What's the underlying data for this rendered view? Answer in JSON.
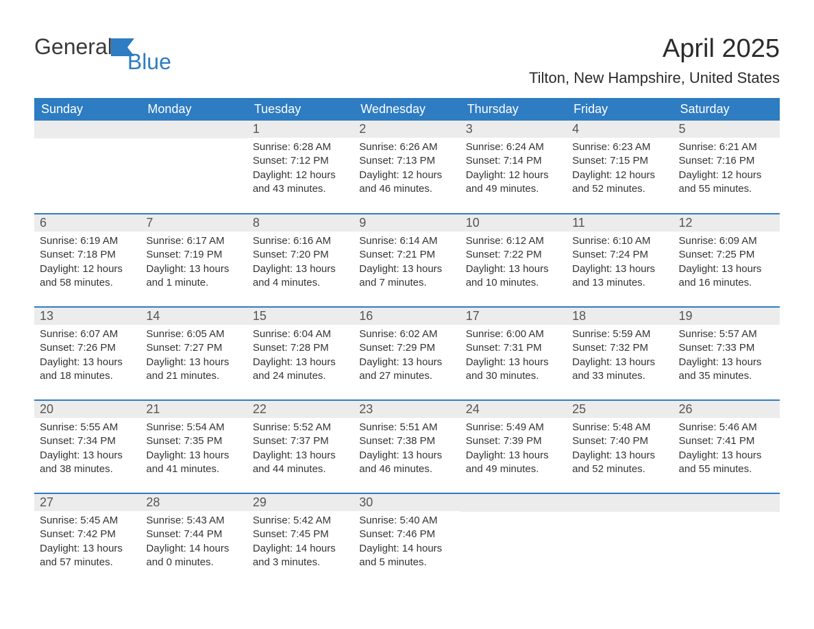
{
  "brand": {
    "part1": "General",
    "part2": "Blue",
    "accent_color": "#2e7cc2"
  },
  "title": "April 2025",
  "location": "Tilton, New Hampshire, United States",
  "colors": {
    "header_bg": "#2e7cc2",
    "header_text": "#ffffff",
    "daynum_bg": "#ececec",
    "daynum_text": "#555555",
    "body_text": "#333333",
    "row_border": "#2e7cc2",
    "page_bg": "#ffffff"
  },
  "days_of_week": [
    "Sunday",
    "Monday",
    "Tuesday",
    "Wednesday",
    "Thursday",
    "Friday",
    "Saturday"
  ],
  "weeks": [
    [
      null,
      null,
      {
        "n": "1",
        "sunrise": "6:28 AM",
        "sunset": "7:12 PM",
        "daylight": "12 hours and 43 minutes."
      },
      {
        "n": "2",
        "sunrise": "6:26 AM",
        "sunset": "7:13 PM",
        "daylight": "12 hours and 46 minutes."
      },
      {
        "n": "3",
        "sunrise": "6:24 AM",
        "sunset": "7:14 PM",
        "daylight": "12 hours and 49 minutes."
      },
      {
        "n": "4",
        "sunrise": "6:23 AM",
        "sunset": "7:15 PM",
        "daylight": "12 hours and 52 minutes."
      },
      {
        "n": "5",
        "sunrise": "6:21 AM",
        "sunset": "7:16 PM",
        "daylight": "12 hours and 55 minutes."
      }
    ],
    [
      {
        "n": "6",
        "sunrise": "6:19 AM",
        "sunset": "7:18 PM",
        "daylight": "12 hours and 58 minutes."
      },
      {
        "n": "7",
        "sunrise": "6:17 AM",
        "sunset": "7:19 PM",
        "daylight": "13 hours and 1 minute."
      },
      {
        "n": "8",
        "sunrise": "6:16 AM",
        "sunset": "7:20 PM",
        "daylight": "13 hours and 4 minutes."
      },
      {
        "n": "9",
        "sunrise": "6:14 AM",
        "sunset": "7:21 PM",
        "daylight": "13 hours and 7 minutes."
      },
      {
        "n": "10",
        "sunrise": "6:12 AM",
        "sunset": "7:22 PM",
        "daylight": "13 hours and 10 minutes."
      },
      {
        "n": "11",
        "sunrise": "6:10 AM",
        "sunset": "7:24 PM",
        "daylight": "13 hours and 13 minutes."
      },
      {
        "n": "12",
        "sunrise": "6:09 AM",
        "sunset": "7:25 PM",
        "daylight": "13 hours and 16 minutes."
      }
    ],
    [
      {
        "n": "13",
        "sunrise": "6:07 AM",
        "sunset": "7:26 PM",
        "daylight": "13 hours and 18 minutes."
      },
      {
        "n": "14",
        "sunrise": "6:05 AM",
        "sunset": "7:27 PM",
        "daylight": "13 hours and 21 minutes."
      },
      {
        "n": "15",
        "sunrise": "6:04 AM",
        "sunset": "7:28 PM",
        "daylight": "13 hours and 24 minutes."
      },
      {
        "n": "16",
        "sunrise": "6:02 AM",
        "sunset": "7:29 PM",
        "daylight": "13 hours and 27 minutes."
      },
      {
        "n": "17",
        "sunrise": "6:00 AM",
        "sunset": "7:31 PM",
        "daylight": "13 hours and 30 minutes."
      },
      {
        "n": "18",
        "sunrise": "5:59 AM",
        "sunset": "7:32 PM",
        "daylight": "13 hours and 33 minutes."
      },
      {
        "n": "19",
        "sunrise": "5:57 AM",
        "sunset": "7:33 PM",
        "daylight": "13 hours and 35 minutes."
      }
    ],
    [
      {
        "n": "20",
        "sunrise": "5:55 AM",
        "sunset": "7:34 PM",
        "daylight": "13 hours and 38 minutes."
      },
      {
        "n": "21",
        "sunrise": "5:54 AM",
        "sunset": "7:35 PM",
        "daylight": "13 hours and 41 minutes."
      },
      {
        "n": "22",
        "sunrise": "5:52 AM",
        "sunset": "7:37 PM",
        "daylight": "13 hours and 44 minutes."
      },
      {
        "n": "23",
        "sunrise": "5:51 AM",
        "sunset": "7:38 PM",
        "daylight": "13 hours and 46 minutes."
      },
      {
        "n": "24",
        "sunrise": "5:49 AM",
        "sunset": "7:39 PM",
        "daylight": "13 hours and 49 minutes."
      },
      {
        "n": "25",
        "sunrise": "5:48 AM",
        "sunset": "7:40 PM",
        "daylight": "13 hours and 52 minutes."
      },
      {
        "n": "26",
        "sunrise": "5:46 AM",
        "sunset": "7:41 PM",
        "daylight": "13 hours and 55 minutes."
      }
    ],
    [
      {
        "n": "27",
        "sunrise": "5:45 AM",
        "sunset": "7:42 PM",
        "daylight": "13 hours and 57 minutes."
      },
      {
        "n": "28",
        "sunrise": "5:43 AM",
        "sunset": "7:44 PM",
        "daylight": "14 hours and 0 minutes."
      },
      {
        "n": "29",
        "sunrise": "5:42 AM",
        "sunset": "7:45 PM",
        "daylight": "14 hours and 3 minutes."
      },
      {
        "n": "30",
        "sunrise": "5:40 AM",
        "sunset": "7:46 PM",
        "daylight": "14 hours and 5 minutes."
      },
      null,
      null,
      null
    ]
  ],
  "labels": {
    "sunrise": "Sunrise:",
    "sunset": "Sunset:",
    "daylight": "Daylight:"
  },
  "font_sizes": {
    "title": 38,
    "subtitle": 22,
    "dow": 18,
    "daynum": 18,
    "body": 15
  }
}
